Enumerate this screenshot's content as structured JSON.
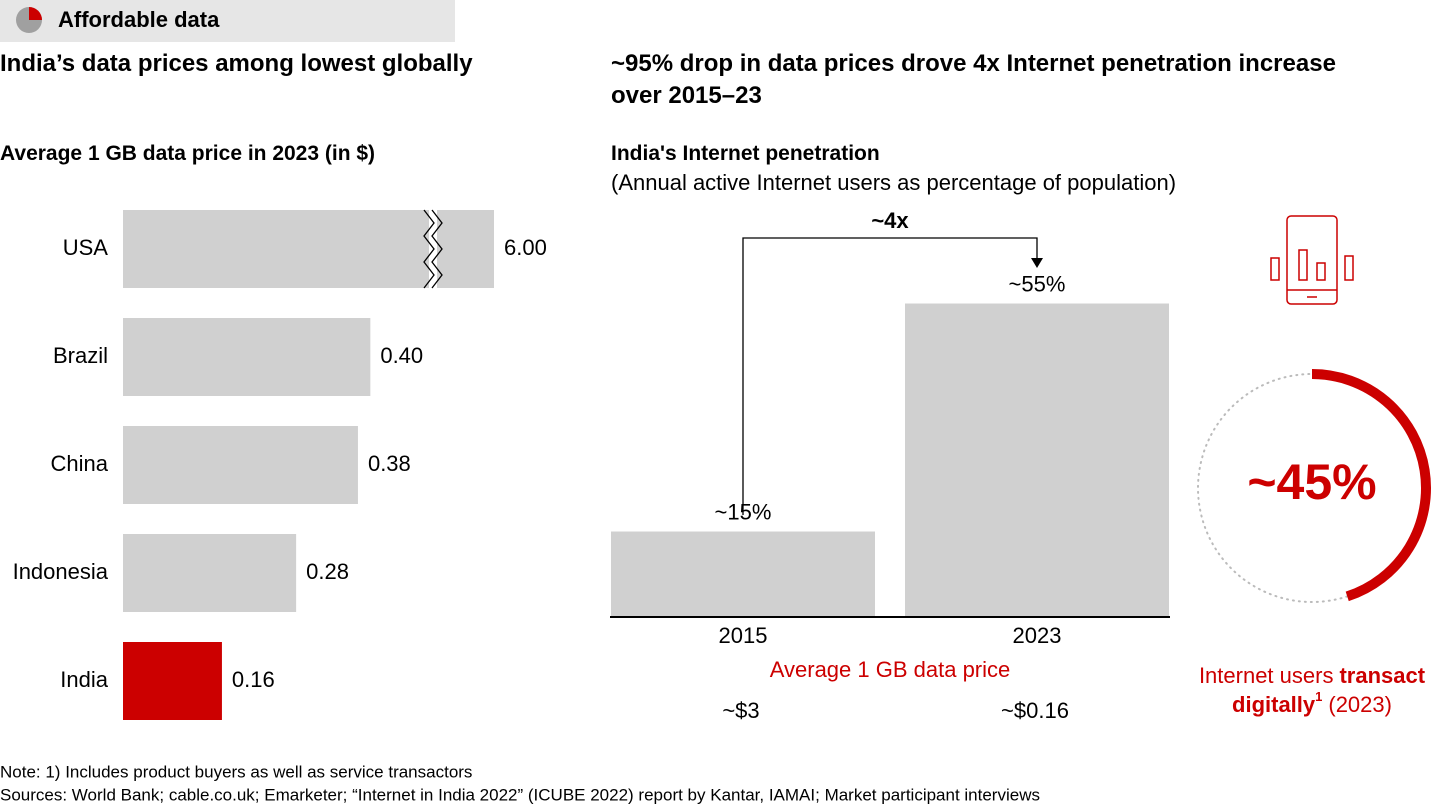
{
  "header": {
    "tag": "Affordable data"
  },
  "chart_data": [
    {
      "type": "hbar",
      "title": "India’s data prices among lowest globally",
      "subtitle": "Average 1 GB data price in 2023 (in $)",
      "categories": [
        "USA",
        "Brazil",
        "China",
        "Indonesia",
        "India"
      ],
      "values": [
        6.0,
        0.4,
        0.38,
        0.28,
        0.16
      ],
      "value_labels": [
        "6.00",
        "0.40",
        "0.38",
        "0.28",
        "0.16"
      ],
      "colors": [
        "#d0d0d0",
        "#d0d0d0",
        "#d0d0d0",
        "#d0d0d0",
        "#cc0000"
      ],
      "xlim": [
        0,
        0.6
      ],
      "axis_break": true
    },
    {
      "type": "bar",
      "title": "~95% drop in data prices drove 4x Internet penetration increase over 2015–23",
      "subtitle": "India's Internet penetration",
      "subtitle_note": "(Annual active Internet users as percentage of population)",
      "categories": [
        "2015",
        "2023"
      ],
      "values": [
        15,
        55
      ],
      "value_labels": [
        "~15%",
        "~55%"
      ],
      "color": "#d0d0d0",
      "ylim": [
        0,
        60
      ],
      "annotation": "~4x",
      "price_label": "Average 1 GB data price",
      "price_texts": [
        "~$3",
        "~$0.16"
      ]
    },
    {
      "type": "donut",
      "value": 45,
      "value_label": "~45%",
      "color": "#cc0000",
      "caption": [
        "Internet users",
        "transact",
        "digitally",
        "1",
        "(2023)"
      ]
    }
  ],
  "footer": {
    "note": "Note: 1) Includes product buyers as well as service transactors",
    "sources": "Sources: World Bank; cable.co.uk; Emarketer; “Internet in India 2022” (ICUBE 2022) report by Kantar, IAMAI; Market participant interviews"
  }
}
